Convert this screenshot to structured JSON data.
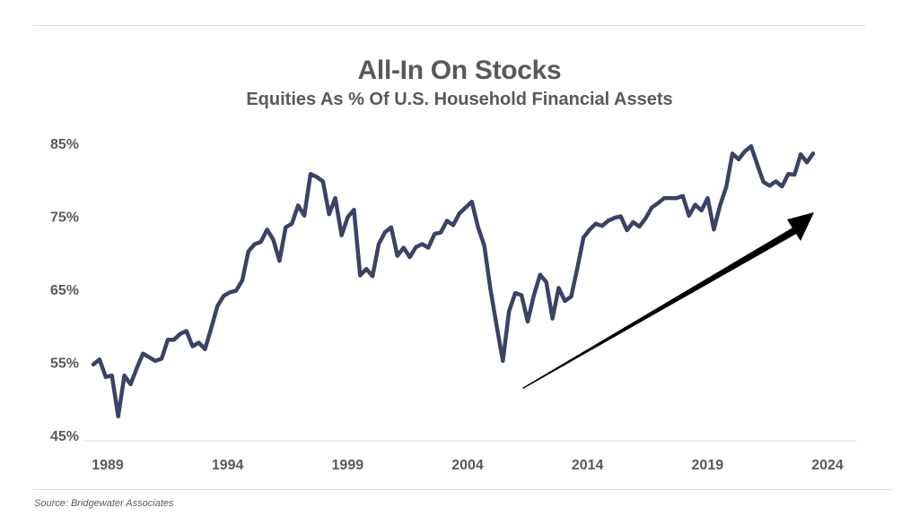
{
  "title": "All-In On Stocks",
  "subtitle": "Equities As % Of U.S. Household Financial Assets",
  "source": "Source: Bridgewater Associates",
  "colors": {
    "line": "#3b4266",
    "arrow": "#000000",
    "text": "#595959",
    "axis": "#d9d9d9"
  },
  "chart_data": {
    "type": "line",
    "title": "All-In On Stocks",
    "subtitle": "Equities As % Of U.S. Household Financial Assets",
    "y_tick_labels": [
      "45%",
      "55%",
      "65%",
      "75%",
      "85%"
    ],
    "y_ticks": [
      45,
      55,
      65,
      75,
      85
    ],
    "ylim": [
      45,
      85
    ],
    "x_tick_labels": [
      "1989",
      "1994",
      "1999",
      "2004",
      "2014",
      "2019",
      "2024"
    ],
    "grid": false,
    "series": [
      {
        "values": [
          54.7,
          55.4,
          53,
          53.2,
          47.6,
          53.2,
          52,
          54.2,
          56.2,
          55.7,
          55.2,
          55.5,
          58.1,
          58.1,
          58.9,
          59.3,
          57.2,
          57.7,
          56.8,
          59.7,
          62.7,
          64.1,
          64.6,
          64.8,
          66.2,
          70.2,
          71.2,
          71.5,
          73.2,
          71.8,
          68.9,
          73.5,
          74,
          76.5,
          75.1,
          80.8,
          80.4,
          79.8,
          75.3,
          77.5,
          72.4,
          74.9,
          75.9,
          66.9,
          67.8,
          66.8,
          71.2,
          72.8,
          73.5,
          69.6,
          70.7,
          69.4,
          70.8,
          71.2,
          70.7,
          72.6,
          72.8,
          74.4,
          73.8,
          75.4,
          76.2,
          77,
          73.5,
          71,
          65,
          60,
          55.2,
          62,
          64.5,
          64.2,
          60.6,
          64.2,
          67,
          66,
          61,
          65.2,
          63.4,
          64,
          67.9,
          72.1,
          73.2,
          74,
          73.7,
          74.4,
          74.8,
          75,
          73.1,
          74.2,
          73.6,
          74.7,
          76.2,
          76.8,
          77.5,
          77.5,
          77.5,
          77.8,
          75.1,
          76.6,
          75.8,
          77.5,
          73.2,
          76.5,
          79,
          83.6,
          82.8,
          83.9,
          84.6,
          82.1,
          79.7,
          79.2,
          79.8,
          79.1,
          80.8,
          80.7,
          83.5,
          82.4,
          83.6
        ]
      }
    ],
    "annotations": [
      {
        "type": "arrow",
        "direction": "up-right",
        "meaning": "upward trend"
      }
    ]
  }
}
